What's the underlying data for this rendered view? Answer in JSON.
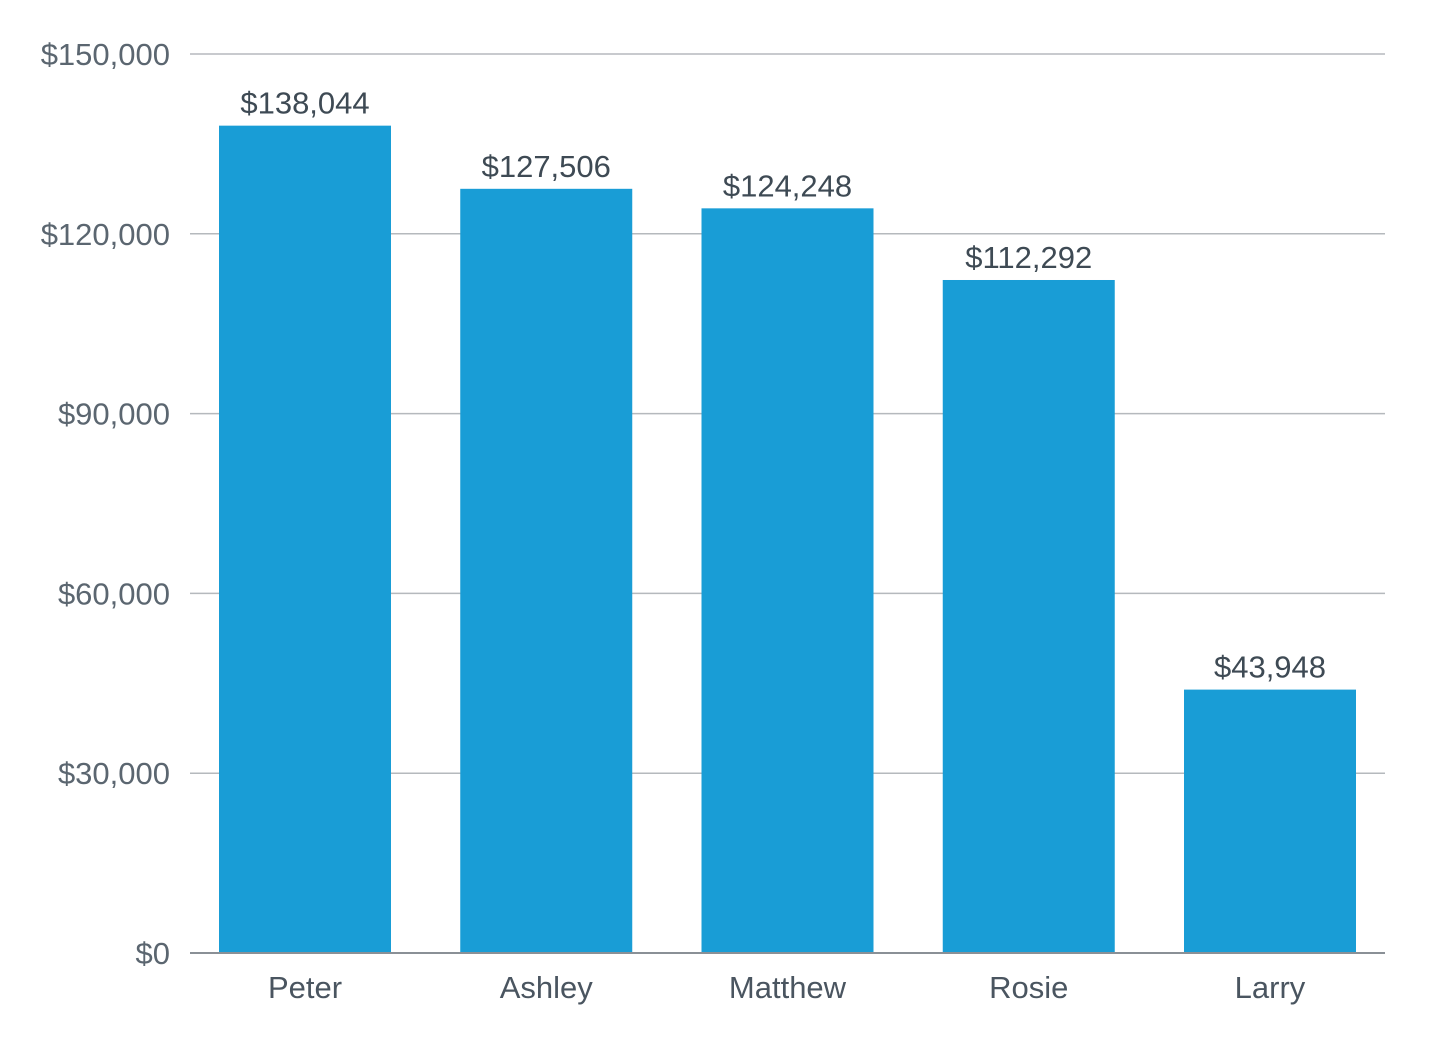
{
  "chart_data": {
    "type": "bar",
    "title": "",
    "xlabel": "",
    "ylabel": "",
    "categories": [
      "Peter",
      "Ashley",
      "Matthew",
      "Rosie",
      "Larry"
    ],
    "values": [
      138044,
      127506,
      124248,
      112292,
      43948
    ],
    "data_labels": [
      "$138,044",
      "$127,506",
      "$124,248",
      "$112,292",
      "$43,948"
    ],
    "ylim": [
      0,
      150000
    ],
    "y_ticks": [
      0,
      30000,
      60000,
      90000,
      120000,
      150000
    ],
    "y_tick_labels": [
      "$0",
      "$30,000",
      "$60,000",
      "$90,000",
      "$120,000",
      "$150,000"
    ],
    "grid": true,
    "legend": "none",
    "colors": {
      "bar": "#199dd6",
      "grid": "#b5b9bd",
      "axis": "#8a9096",
      "tick_text": "#5b6670",
      "label_text": "#3e4a54"
    }
  }
}
